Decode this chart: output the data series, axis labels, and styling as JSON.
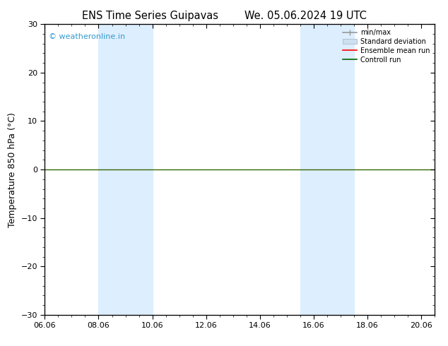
{
  "title_left": "ENS Time Series Guipavas",
  "title_right": "We. 05.06.2024 19 UTC",
  "ylabel": "Temperature 850 hPa (°C)",
  "ylim": [
    -30,
    30
  ],
  "yticks": [
    -30,
    -20,
    -10,
    0,
    10,
    20,
    30
  ],
  "xlim": [
    0.0,
    14.5
  ],
  "xtick_labels": [
    "06.06",
    "08.06",
    "10.06",
    "12.06",
    "14.06",
    "16.06",
    "18.06",
    "20.06"
  ],
  "xtick_positions": [
    0.0,
    2.0,
    4.0,
    6.0,
    8.0,
    10.0,
    12.0,
    14.0
  ],
  "watermark": "© weatheronline.in",
  "watermark_color": "#3399cc",
  "bg_color": "#ffffff",
  "plot_bg_color": "#ffffff",
  "zero_line_color": "#336600",
  "zero_line_y": 0,
  "shaded_bands": [
    {
      "xmin": 2.0,
      "xmax": 4.0
    },
    {
      "xmin": 9.5,
      "xmax": 11.5
    }
  ],
  "shaded_color": "#ddeeff",
  "legend_items": [
    {
      "label": "min/max",
      "color": "#999999",
      "type": "hline_with_ticks"
    },
    {
      "label": "Standard deviation",
      "color": "#cce0f0",
      "type": "box"
    },
    {
      "label": "Ensemble mean run",
      "color": "#ff0000",
      "type": "line"
    },
    {
      "label": "Controll run",
      "color": "#006600",
      "type": "line"
    }
  ],
  "title_fontsize": 10.5,
  "label_fontsize": 9,
  "tick_fontsize": 8,
  "watermark_fontsize": 8
}
